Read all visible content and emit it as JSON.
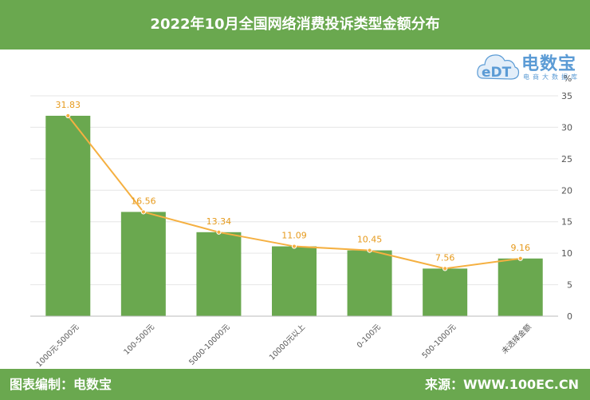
{
  "header": {
    "title": "2022年10月全国网络消费投诉类型金额分布"
  },
  "logo": {
    "name": "电数宝",
    "subtitle": "电商大数据库",
    "mark": "eDT"
  },
  "footer": {
    "left": "图表编制：电数宝",
    "right": "来源：WWW.100EC.CN"
  },
  "colors": {
    "brand_green": "#6aa84f",
    "bar": "#6aa84f",
    "line": "#f5b041",
    "logo_blue": "#5b9bd5"
  },
  "chart_data": {
    "type": "bar",
    "title": "2022年10月全国网络消费投诉类型金额分布",
    "categories": [
      "1000元-5000元",
      "100-500元",
      "5000-10000元",
      "10000元以上",
      "0-100元",
      "500-1000元",
      "未选择金额"
    ],
    "series": [
      {
        "type": "bar",
        "values": [
          31.83,
          16.56,
          13.34,
          11.09,
          10.45,
          7.56,
          9.16
        ]
      },
      {
        "type": "line",
        "values": [
          31.83,
          16.56,
          13.34,
          11.09,
          10.45,
          7.56,
          9.16
        ]
      }
    ],
    "data_labels": [
      "31.83",
      "16.56",
      "13.34",
      "11.09",
      "10.45",
      "7.56",
      "9.16"
    ],
    "ylabel": "%",
    "ylim": [
      0,
      35
    ],
    "y_ticks": [
      "0",
      "5",
      "10",
      "15",
      "20",
      "25",
      "30",
      "35"
    ],
    "y_axis_position": "right",
    "grid": true,
    "legend": "none"
  }
}
